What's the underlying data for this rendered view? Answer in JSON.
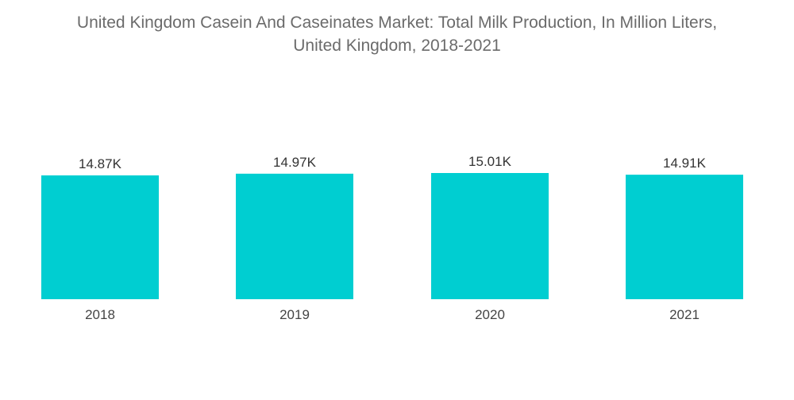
{
  "chart_data": {
    "type": "bar",
    "title_line1": "United Kingdom Casein And Caseinates Market: Total Milk Production, In Million Liters,",
    "title_line2": "United Kingdom, 2018-2021",
    "categories": [
      "2018",
      "2019",
      "2020",
      "2021"
    ],
    "values": [
      14870,
      14970,
      15010,
      14910
    ],
    "value_labels": [
      "14.87K",
      "14.97K",
      "15.01K",
      "14.91K"
    ],
    "bar_color": "#00CED1",
    "grid": false,
    "legend": "none"
  }
}
